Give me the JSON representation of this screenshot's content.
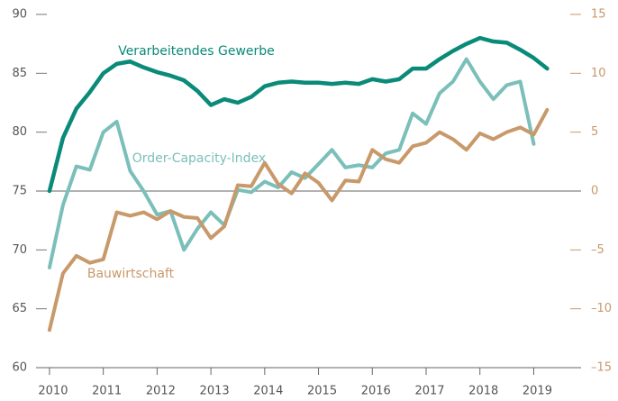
{
  "chart_data": {
    "type": "line",
    "x": [
      2010,
      2010.25,
      2010.5,
      2010.75,
      2011,
      2011.25,
      2011.5,
      2011.75,
      2012,
      2012.25,
      2012.5,
      2012.75,
      2013,
      2013.25,
      2013.5,
      2013.75,
      2014,
      2014.25,
      2014.5,
      2014.75,
      2015,
      2015.25,
      2015.5,
      2015.75,
      2016,
      2016.25,
      2016.5,
      2016.75,
      2017,
      2017.25,
      2017.5,
      2017.75,
      2018,
      2018.25,
      2018.5,
      2018.75,
      2019,
      2019.25
    ],
    "series": [
      {
        "name": "Verarbeitendes Gewerbe",
        "color": "#0a8a78",
        "axis": "y",
        "values": [
          75,
          79.5,
          82,
          83.4,
          85,
          85.8,
          86,
          85.5,
          85.1,
          84.8,
          84.4,
          83.5,
          82.3,
          82.8,
          82.5,
          83,
          83.9,
          84.2,
          84.3,
          84.2,
          84.2,
          84.1,
          84.2,
          84.1,
          84.5,
          84.3,
          84.5,
          85.4,
          85.4,
          86.2,
          86.9,
          87.5,
          88,
          87.7,
          87.6,
          87,
          86.3,
          85.4
        ]
      },
      {
        "name": "Order-Capacity-Index",
        "color": "#7bbfba",
        "axis": "y2",
        "values": [
          -6.5,
          -1.2,
          2.1,
          1.8,
          5.0,
          5.9,
          1.7,
          0,
          -2.0,
          -1.7,
          -5.0,
          -3.2,
          -1.8,
          -2.9,
          0.1,
          -0.1,
          0.8,
          0.3,
          1.6,
          1.1,
          2.3,
          3.5,
          2.0,
          2.2,
          2.0,
          3.2,
          3.5,
          6.6,
          5.7,
          8.3,
          9.3,
          11.2,
          9.3,
          7.8,
          9.0,
          9.3,
          4.0,
          null
        ]
      },
      {
        "name": "Bauwirtschaft",
        "color": "#c8996a",
        "axis": "y2",
        "values": [
          -11.8,
          -7.0,
          -5.5,
          -6.1,
          -5.8,
          -1.8,
          -2.1,
          -1.8,
          -2.4,
          -1.7,
          -2.2,
          -2.3,
          -4.0,
          -3.0,
          0.5,
          0.4,
          2.4,
          0.6,
          -0.2,
          1.5,
          0.7,
          -0.8,
          0.9,
          0.8,
          3.5,
          2.7,
          2.4,
          3.8,
          4.1,
          5.0,
          4.4,
          3.5,
          4.9,
          4.4,
          5.0,
          5.4,
          4.8,
          6.9
        ]
      }
    ],
    "xlim": [
      2009.75,
      2019.88
    ],
    "xticks": [
      2010,
      2011,
      2012,
      2013,
      2014,
      2015,
      2016,
      2017,
      2018,
      2019
    ],
    "ylim": [
      60,
      90
    ],
    "yticks": [
      60,
      65,
      70,
      75,
      80,
      85,
      90
    ],
    "y2lim": [
      -15,
      15
    ],
    "y2ticks": [
      {
        "value": -15,
        "label": "–15"
      },
      {
        "value": -10,
        "label": "–10"
      },
      {
        "value": -5,
        "label": "–5"
      },
      0,
      5,
      10,
      15
    ]
  }
}
